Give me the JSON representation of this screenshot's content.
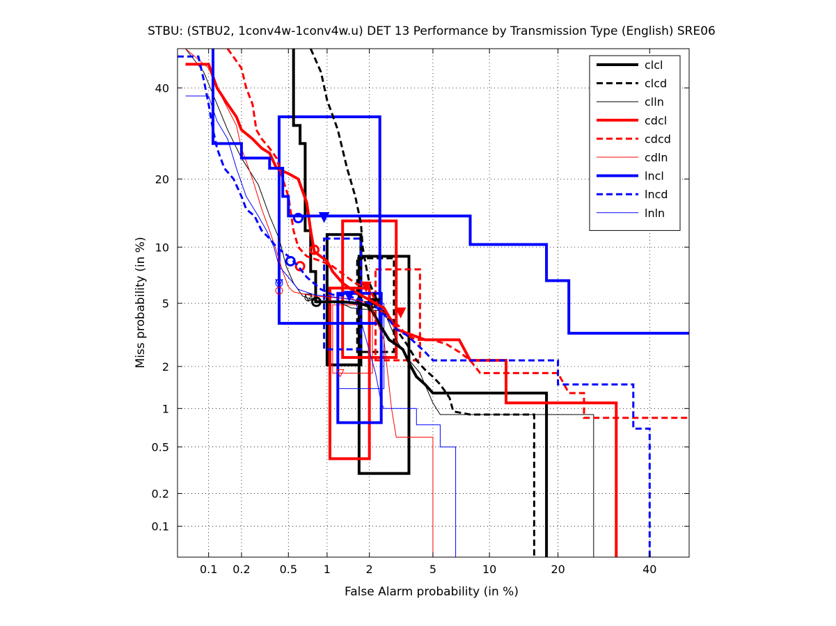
{
  "chart_data": {
    "type": "line",
    "title": "STBU: (STBU2, 1conv4w-1conv4w.u) DET 13 Performance by Transmission Type (English) SRE06",
    "xlabel": "False Alarm probability (in %)",
    "ylabel": "Miss probability (in %)",
    "x_scale": "probit",
    "y_scale": "probit",
    "xlim": [
      0.05,
      50
    ],
    "ylim": [
      0.05,
      50
    ],
    "x_ticks": [
      {
        "value": 0.1,
        "label": "0.1"
      },
      {
        "value": 0.2,
        "label": "0.2"
      },
      {
        "value": 0.5,
        "label": "0.5"
      },
      {
        "value": 1,
        "label": "1"
      },
      {
        "value": 2,
        "label": "2"
      },
      {
        "value": 5,
        "label": "5"
      },
      {
        "value": 10,
        "label": "10"
      },
      {
        "value": 20,
        "label": "20"
      },
      {
        "value": 40,
        "label": "40"
      }
    ],
    "y_ticks": [
      {
        "value": 0.1,
        "label": "0.1"
      },
      {
        "value": 0.2,
        "label": "0.2"
      },
      {
        "value": 0.5,
        "label": "0.5"
      },
      {
        "value": 1,
        "label": "1"
      },
      {
        "value": 2,
        "label": "2"
      },
      {
        "value": 5,
        "label": "5"
      },
      {
        "value": 10,
        "label": "10"
      },
      {
        "value": 20,
        "label": "20"
      },
      {
        "value": 40,
        "label": "40"
      }
    ],
    "grid": true,
    "legend_position": "top-right",
    "series": [
      {
        "name": "clcl",
        "color": "#000000",
        "style": "solid",
        "width": 4,
        "points": [
          [
            0.55,
            50
          ],
          [
            0.55,
            31
          ],
          [
            0.62,
            31
          ],
          [
            0.62,
            27
          ],
          [
            0.68,
            27
          ],
          [
            0.68,
            12
          ],
          [
            0.75,
            12
          ],
          [
            0.75,
            7.5
          ],
          [
            0.82,
            7.5
          ],
          [
            0.82,
            5.1
          ],
          [
            1.3,
            5.1
          ],
          [
            1.7,
            5.0
          ],
          [
            2.0,
            4.8
          ],
          [
            2.4,
            3.6
          ],
          [
            2.7,
            3.0
          ],
          [
            3.0,
            2.8
          ],
          [
            3.3,
            2.6
          ],
          [
            3.7,
            2.0
          ],
          [
            4.0,
            1.7
          ],
          [
            4.5,
            1.5
          ],
          [
            5.0,
            1.3
          ],
          [
            18,
            1.3
          ],
          [
            18,
            0.05
          ]
        ],
        "actual_marker": [
          0.83,
          5.1
        ],
        "min_dcf_marker": [
          2.0,
          4.8
        ],
        "box": {
          "x": [
            1.0,
            1.75
          ],
          "y": [
            2.05,
            11.5
          ]
        },
        "box2": {
          "x": [
            1.7,
            3.6
          ],
          "y": [
            0.3,
            9.0
          ]
        }
      },
      {
        "name": "clcd",
        "color": "#000000",
        "style": "dashed",
        "width": 3,
        "points": [
          [
            0.75,
            50
          ],
          [
            0.9,
            44
          ],
          [
            1.0,
            37
          ],
          [
            1.2,
            30
          ],
          [
            1.4,
            22
          ],
          [
            1.6,
            17
          ],
          [
            1.75,
            13
          ],
          [
            1.8,
            10
          ],
          [
            1.9,
            8
          ],
          [
            2.0,
            6.5
          ],
          [
            2.3,
            5.0
          ],
          [
            2.6,
            4.2
          ],
          [
            3.0,
            3.5
          ],
          [
            3.5,
            2.8
          ],
          [
            4.0,
            2.2
          ],
          [
            4.5,
            1.9
          ],
          [
            5.0,
            1.7
          ],
          [
            5.5,
            1.5
          ],
          [
            6.2,
            1.2
          ],
          [
            6.5,
            0.95
          ],
          [
            8,
            0.9
          ],
          [
            16,
            0.9
          ],
          [
            16,
            0.05
          ]
        ],
        "actual_marker": [
          2.1,
          5.0
        ],
        "min_dcf_marker": [
          2.2,
          5.0
        ],
        "box": {
          "x": [
            1.65,
            2.9
          ],
          "y": [
            2.5,
            8.8
          ]
        }
      },
      {
        "name": "clln",
        "color": "#000000",
        "style": "solid",
        "width": 1,
        "points": [
          [
            0.06,
            50
          ],
          [
            0.09,
            44
          ],
          [
            0.12,
            36
          ],
          [
            0.15,
            30
          ],
          [
            0.2,
            24
          ],
          [
            0.28,
            19
          ],
          [
            0.35,
            14
          ],
          [
            0.42,
            11
          ],
          [
            0.48,
            8
          ],
          [
            0.55,
            6.5
          ],
          [
            0.65,
            5.5
          ],
          [
            0.8,
            5.2
          ],
          [
            1.2,
            5.1
          ],
          [
            1.5,
            4.7
          ],
          [
            2.5,
            4.5
          ],
          [
            3.0,
            3.0
          ],
          [
            3.5,
            2.3
          ],
          [
            4.2,
            1.8
          ],
          [
            5,
            1.1
          ],
          [
            5.5,
            0.9
          ],
          [
            27,
            0.9
          ],
          [
            27,
            0.05
          ]
        ],
        "actual_marker": [
          0.72,
          5.4
        ],
        "min_dcf_marker": [
          0.72,
          5.4
        ]
      },
      {
        "name": "cdcl",
        "color": "#ff0000",
        "style": "solid",
        "width": 4,
        "points": [
          [
            0.06,
            46
          ],
          [
            0.1,
            46
          ],
          [
            0.12,
            40
          ],
          [
            0.15,
            36
          ],
          [
            0.18,
            33
          ],
          [
            0.2,
            30
          ],
          [
            0.25,
            28
          ],
          [
            0.3,
            26
          ],
          [
            0.35,
            25
          ],
          [
            0.4,
            22
          ],
          [
            0.5,
            21
          ],
          [
            0.6,
            20
          ],
          [
            0.7,
            16
          ],
          [
            0.75,
            12
          ],
          [
            0.8,
            9.5
          ],
          [
            1.0,
            8.5
          ],
          [
            1.1,
            7.5
          ],
          [
            1.3,
            6.5
          ],
          [
            1.5,
            6.0
          ],
          [
            1.8,
            5.5
          ],
          [
            2.2,
            5.0
          ],
          [
            2.5,
            4.7
          ],
          [
            3.0,
            3.5
          ],
          [
            4.5,
            3.0
          ],
          [
            7,
            3.0
          ],
          [
            8,
            2.2
          ],
          [
            12,
            2.2
          ],
          [
            12,
            1.1
          ],
          [
            32,
            1.1
          ],
          [
            32,
            0.05
          ]
        ],
        "actual_marker": [
          0.8,
          9.7
        ],
        "min_dcf_marker": [
          1.9,
          6.2
        ],
        "box": {
          "x": [
            1.3,
            3.0
          ],
          "y": [
            2.3,
            13.3
          ]
        },
        "box2": {
          "x": [
            1.05,
            2.0
          ],
          "y": [
            0.4,
            6.1
          ]
        }
      },
      {
        "name": "cdcd",
        "color": "#ff0000",
        "style": "dashed",
        "width": 3,
        "points": [
          [
            0.15,
            50
          ],
          [
            0.2,
            45
          ],
          [
            0.22,
            40
          ],
          [
            0.25,
            36
          ],
          [
            0.27,
            30
          ],
          [
            0.3,
            28
          ],
          [
            0.35,
            26
          ],
          [
            0.4,
            24
          ],
          [
            0.45,
            20
          ],
          [
            0.5,
            17
          ],
          [
            0.55,
            12
          ],
          [
            0.6,
            10
          ],
          [
            0.7,
            9.0
          ],
          [
            0.9,
            8.5
          ],
          [
            1.1,
            8
          ],
          [
            1.4,
            7
          ],
          [
            1.6,
            6.5
          ],
          [
            2.0,
            6.0
          ],
          [
            2.4,
            4.5
          ],
          [
            3.0,
            3.8
          ],
          [
            3.5,
            3.2
          ],
          [
            4.0,
            3.0
          ],
          [
            5,
            3.0
          ],
          [
            6,
            2.8
          ],
          [
            7,
            2.5
          ],
          [
            8,
            2.2
          ],
          [
            9,
            1.8
          ],
          [
            20,
            1.8
          ],
          [
            22,
            1.3
          ],
          [
            25,
            1.3
          ],
          [
            25,
            0.85
          ],
          [
            50,
            0.85
          ]
        ],
        "actual_marker": [
          0.62,
          8.0
        ],
        "min_dcf_marker": [
          3.2,
          4.4
        ],
        "box": {
          "x": [
            2.2,
            4.2
          ],
          "y": [
            2.2,
            7.7
          ]
        }
      },
      {
        "name": "cdln",
        "color": "#ff0000",
        "style": "solid",
        "width": 1,
        "points": [
          [
            0.06,
            50
          ],
          [
            0.1,
            45
          ],
          [
            0.12,
            40
          ],
          [
            0.15,
            35
          ],
          [
            0.18,
            31
          ],
          [
            0.2,
            26
          ],
          [
            0.25,
            20
          ],
          [
            0.3,
            15
          ],
          [
            0.35,
            12
          ],
          [
            0.4,
            9.5
          ],
          [
            0.45,
            7.5
          ],
          [
            0.5,
            6.2
          ],
          [
            0.55,
            5.8
          ],
          [
            0.8,
            5.5
          ],
          [
            1.5,
            5.3
          ],
          [
            2,
            5.0
          ],
          [
            2.5,
            3.0
          ],
          [
            2.8,
            1.0
          ],
          [
            3.0,
            0.6
          ],
          [
            5,
            0.6
          ],
          [
            5,
            0.05
          ]
        ],
        "actual_marker": [
          0.42,
          5.9
        ],
        "min_dcf_marker": [
          1.25,
          1.8
        ],
        "box": {
          "x": [
            1.1,
            2.1
          ],
          "y": [
            1.8,
            4.9
          ]
        }
      },
      {
        "name": "lncl",
        "color": "#0000ff",
        "style": "solid",
        "width": 4,
        "points": [
          [
            0.11,
            50
          ],
          [
            0.11,
            27
          ],
          [
            0.2,
            27
          ],
          [
            0.2,
            24
          ],
          [
            0.35,
            24
          ],
          [
            0.35,
            22
          ],
          [
            0.45,
            22
          ],
          [
            0.45,
            17
          ],
          [
            0.5,
            17
          ],
          [
            0.5,
            14
          ],
          [
            0.9,
            14
          ],
          [
            1.2,
            14
          ],
          [
            8,
            14
          ],
          [
            8,
            10.3
          ],
          [
            18,
            10.3
          ],
          [
            18,
            6.7
          ],
          [
            22,
            6.7
          ],
          [
            22,
            3.3
          ],
          [
            50,
            3.3
          ]
        ],
        "actual_marker": [
          0.6,
          13.7
        ],
        "min_dcf_marker": [
          0.95,
          13.8
        ],
        "box": {
          "x": [
            0.42,
            2.35
          ],
          "y": [
            3.8,
            33
          ]
        },
        "box2": {
          "x": [
            1.2,
            2.4
          ],
          "y": [
            0.78,
            5.7
          ]
        }
      },
      {
        "name": "lncd",
        "color": "#0000ff",
        "style": "dashed",
        "width": 3,
        "points": [
          [
            0.05,
            48
          ],
          [
            0.08,
            48
          ],
          [
            0.09,
            42
          ],
          [
            0.1,
            36
          ],
          [
            0.11,
            30
          ],
          [
            0.12,
            26
          ],
          [
            0.14,
            22
          ],
          [
            0.17,
            20
          ],
          [
            0.2,
            17
          ],
          [
            0.22,
            15
          ],
          [
            0.26,
            14
          ],
          [
            0.3,
            12
          ],
          [
            0.35,
            11
          ],
          [
            0.4,
            10
          ],
          [
            0.5,
            9
          ],
          [
            0.6,
            8
          ],
          [
            0.7,
            7
          ],
          [
            0.9,
            6
          ],
          [
            1.1,
            5.6
          ],
          [
            1.4,
            5.5
          ],
          [
            1.7,
            5.3
          ],
          [
            2.2,
            4.8
          ],
          [
            2.7,
            4.0
          ],
          [
            3.0,
            3.5
          ],
          [
            3.5,
            3.2
          ],
          [
            4.5,
            2.5
          ],
          [
            5,
            2.2
          ],
          [
            20,
            2.2
          ],
          [
            20,
            1.5
          ],
          [
            36,
            1.5
          ],
          [
            36,
            0.7
          ],
          [
            40,
            0.7
          ],
          [
            40,
            0.05
          ]
        ],
        "actual_marker": [
          0.52,
          8.5
        ],
        "min_dcf_marker": [
          1.45,
          5.5
        ],
        "box": {
          "x": [
            0.95,
            1.75
          ],
          "y": [
            2.6,
            11
          ]
        }
      },
      {
        "name": "lnln",
        "color": "#0000ff",
        "style": "solid",
        "width": 1,
        "points": [
          [
            0.06,
            38
          ],
          [
            0.1,
            38
          ],
          [
            0.12,
            32
          ],
          [
            0.15,
            28
          ],
          [
            0.18,
            22
          ],
          [
            0.22,
            17
          ],
          [
            0.28,
            14
          ],
          [
            0.33,
            12
          ],
          [
            0.38,
            10
          ],
          [
            0.42,
            8
          ],
          [
            0.5,
            7
          ],
          [
            0.6,
            6.0
          ],
          [
            0.8,
            5.6
          ],
          [
            1.2,
            5.4
          ],
          [
            1.6,
            5.2
          ],
          [
            2.2,
            1.8
          ],
          [
            2.4,
            1.1
          ],
          [
            2.5,
            1.0
          ],
          [
            4.0,
            1.0
          ],
          [
            4.0,
            0.75
          ],
          [
            5.5,
            0.75
          ],
          [
            5.5,
            0.5
          ],
          [
            6.7,
            0.5
          ],
          [
            6.7,
            0.05
          ]
        ],
        "actual_marker": [
          0.42,
          6.5
        ],
        "min_dcf_marker": [
          0.42,
          6.5
        ],
        "box": {
          "x": [
            1.2,
            2.5
          ],
          "y": [
            1.4,
            5.0
          ]
        }
      }
    ]
  }
}
